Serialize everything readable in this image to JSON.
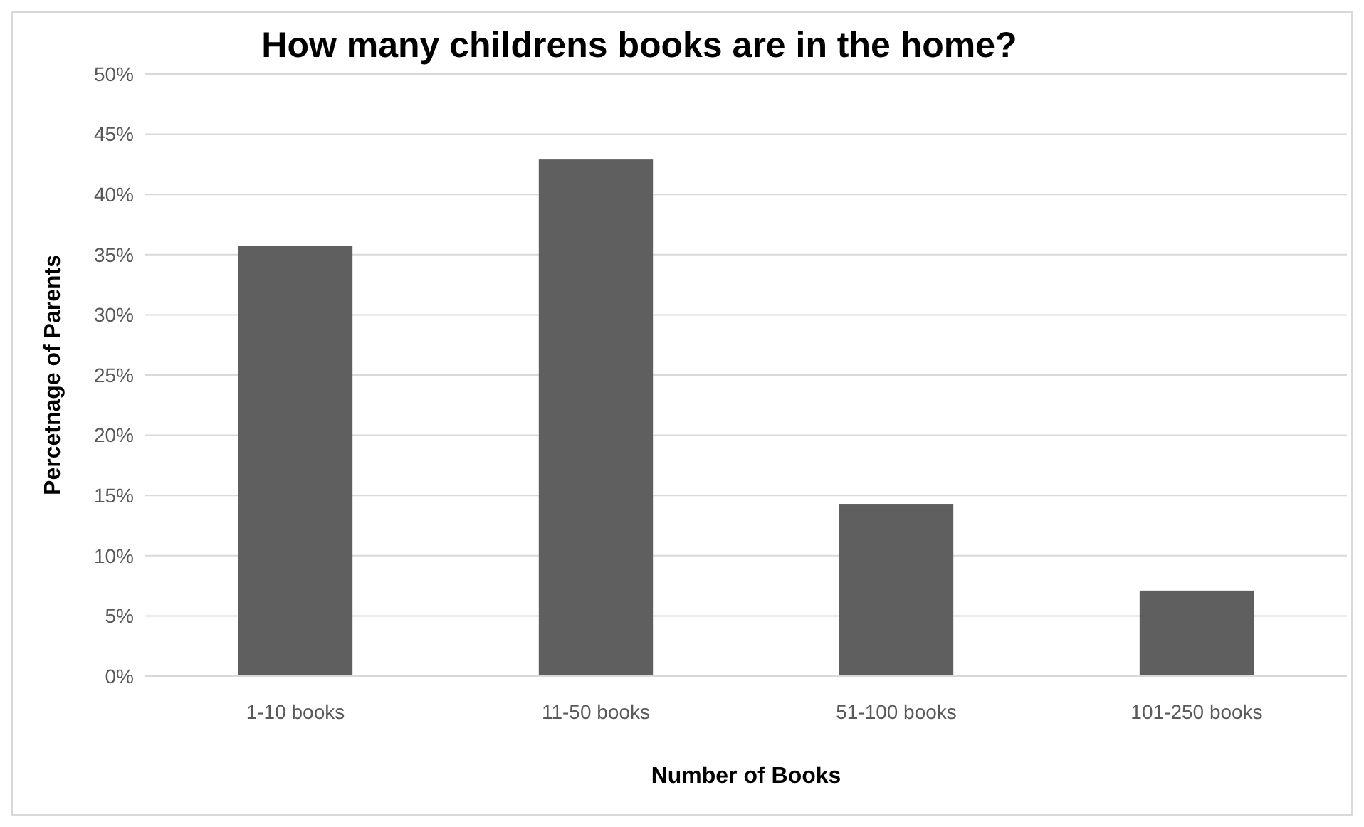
{
  "chart_data": {
    "type": "bar",
    "title": "How many childrens books are in the home?",
    "xlabel": "Number of Books",
    "ylabel": "Percetnage of Parents",
    "categories": [
      "1-10 books",
      "11-50 books",
      "51-100 books",
      "101-250 books"
    ],
    "values": [
      35.7,
      42.9,
      14.3,
      7.1
    ],
    "color": "#5f5f5f",
    "ylim": [
      0,
      50
    ],
    "yticks": [
      {
        "value": 0,
        "label": "0%"
      },
      {
        "value": 5,
        "label": "5%"
      },
      {
        "value": 10,
        "label": "10%"
      },
      {
        "value": 15,
        "label": "15%"
      },
      {
        "value": 20,
        "label": "20%"
      },
      {
        "value": 25,
        "label": "25%"
      },
      {
        "value": 30,
        "label": "30%"
      },
      {
        "value": 35,
        "label": "35%"
      },
      {
        "value": 40,
        "label": "40%"
      },
      {
        "value": 45,
        "label": "45%"
      },
      {
        "value": 50,
        "label": "50%"
      }
    ],
    "grid": "y"
  }
}
